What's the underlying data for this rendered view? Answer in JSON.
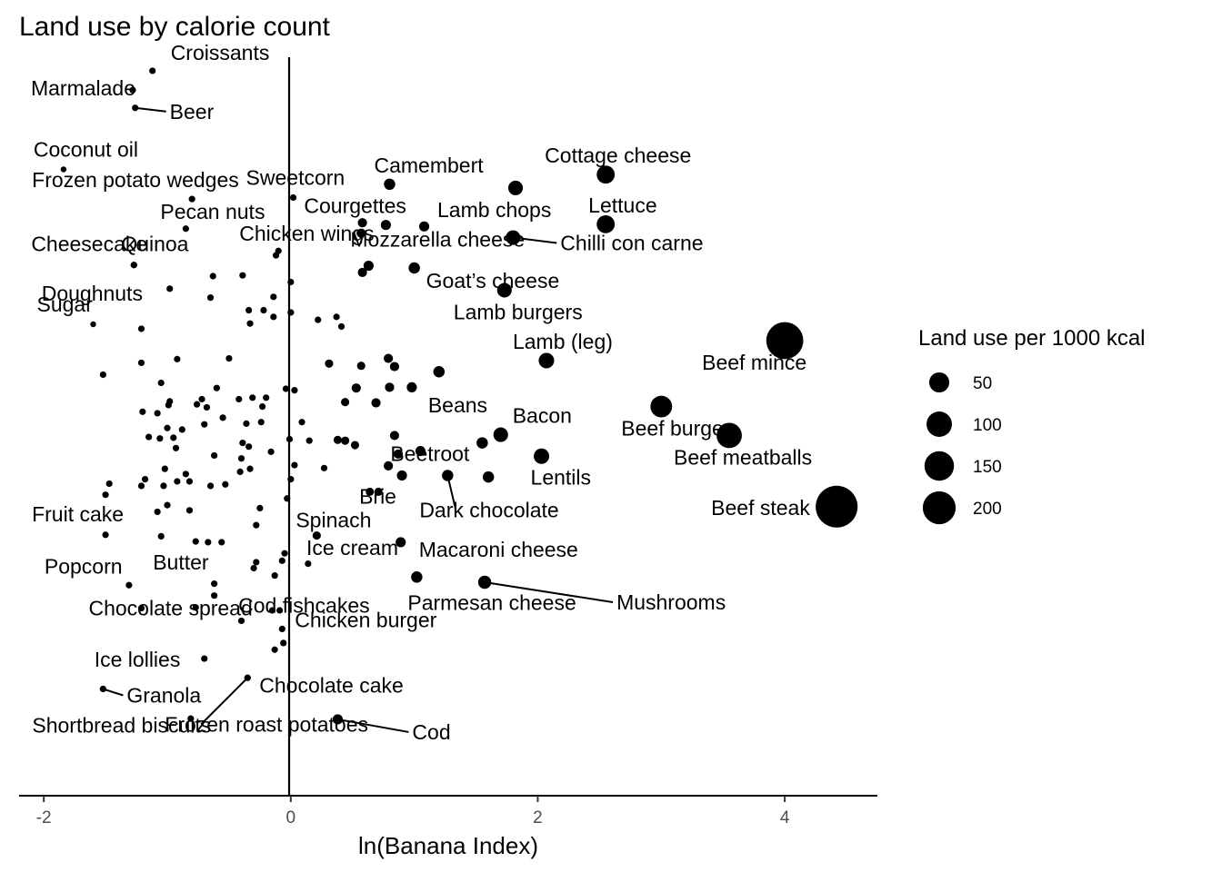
{
  "chart_data": {
    "type": "scatter",
    "title": "Land use by calorie count",
    "xlabel": "ln(Banana Index)",
    "ylabel": "",
    "xlim": [
      -2.2,
      4.75
    ],
    "ylim": [
      0,
      1
    ],
    "x_ticks": [
      -2,
      0,
      2,
      4
    ],
    "x_tick_labels": [
      "-2",
      "0",
      "2",
      "4"
    ],
    "grid": false,
    "legend": {
      "title": "Land use per 1000 kcal",
      "position": "right",
      "entries": [
        {
          "label": "50",
          "value": 50
        },
        {
          "label": "100",
          "value": 100
        },
        {
          "label": "150",
          "value": 150
        },
        {
          "label": "200",
          "value": 200
        }
      ]
    },
    "labeled_points": [
      {
        "name": "Croissants",
        "x": -1.12,
        "y": 0.978,
        "size": 5
      },
      {
        "name": "Marmalade",
        "x": -1.28,
        "y": 0.952,
        "size": 5
      },
      {
        "name": "Beer",
        "x": -1.26,
        "y": 0.928,
        "size": 5
      },
      {
        "name": "Coconut oil",
        "x": -1.84,
        "y": 0.845,
        "size": 4
      },
      {
        "name": "Frozen potato wedges",
        "x": -0.8,
        "y": 0.805,
        "size": 5
      },
      {
        "name": "Sweetcorn",
        "x": 0.02,
        "y": 0.807,
        "size": 5
      },
      {
        "name": "Camembert",
        "x": 0.8,
        "y": 0.825,
        "size": 15
      },
      {
        "name": "Cottage cheese",
        "x": 2.55,
        "y": 0.838,
        "size": 38
      },
      {
        "name": "Lamb chops",
        "x": 1.82,
        "y": 0.82,
        "size": 25
      },
      {
        "name": "Lettuce",
        "x": 2.55,
        "y": 0.771,
        "size": 38
      },
      {
        "name": "Courgettes",
        "x": 0.77,
        "y": 0.77,
        "size": 12
      },
      {
        "name": "Chilli con carne",
        "x": 1.8,
        "y": 0.753,
        "size": 25
      },
      {
        "name": "Pecan nuts",
        "x": -0.85,
        "y": 0.765,
        "size": 5
      },
      {
        "name": "Mozzarella cheese",
        "x": 0.63,
        "y": 0.715,
        "size": 12
      },
      {
        "name": "Cheesecake",
        "x": -1.27,
        "y": 0.716,
        "size": 5
      },
      {
        "name": "Quinoa",
        "x": -1.27,
        "y": 0.716,
        "size": 5
      },
      {
        "name": "Chicken wings",
        "x": -0.1,
        "y": 0.735,
        "size": 5
      },
      {
        "name": "Goat’s cheese",
        "x": 1.0,
        "y": 0.712,
        "size": 15
      },
      {
        "name": "Doughnuts",
        "x": -0.98,
        "y": 0.684,
        "size": 5
      },
      {
        "name": "Lamb burgers",
        "x": 1.73,
        "y": 0.682,
        "size": 25
      },
      {
        "name": "Sugar",
        "x": -1.6,
        "y": 0.636,
        "size": 4
      },
      {
        "name": "Beef mince",
        "x": 4.0,
        "y": 0.614,
        "size": 160
      },
      {
        "name": "Lamb (leg)",
        "x": 2.07,
        "y": 0.587,
        "size": 28
      },
      {
        "name": "Beans",
        "x": 1.2,
        "y": 0.572,
        "size": 15
      },
      {
        "name": "Beef burger",
        "x": 3.0,
        "y": 0.525,
        "size": 55
      },
      {
        "name": "Bacon",
        "x": 1.7,
        "y": 0.487,
        "size": 25
      },
      {
        "name": "Beef meatballs",
        "x": 3.55,
        "y": 0.486,
        "size": 75
      },
      {
        "name": "Beetroot",
        "x": 1.55,
        "y": 0.476,
        "size": 15
      },
      {
        "name": "Lentils",
        "x": 2.03,
        "y": 0.458,
        "size": 28
      },
      {
        "name": "Dark chocolate",
        "x": 1.27,
        "y": 0.432,
        "size": 15
      },
      {
        "name": "Brie",
        "x": 0.9,
        "y": 0.432,
        "size": 12
      },
      {
        "name": "Beef steak",
        "x": 4.42,
        "y": 0.39,
        "size": 205
      },
      {
        "name": "Fruit cake",
        "x": -1.5,
        "y": 0.352,
        "size": 5
      },
      {
        "name": "Spinach",
        "x": 0.21,
        "y": 0.351,
        "size": 8
      },
      {
        "name": "Macaroni cheese",
        "x": 0.89,
        "y": 0.342,
        "size": 12
      },
      {
        "name": "Butter",
        "x": -0.77,
        "y": 0.343,
        "size": 5
      },
      {
        "name": "Ice cream",
        "x": -0.05,
        "y": 0.327,
        "size": 5
      },
      {
        "name": "Popcorn",
        "x": -1.31,
        "y": 0.284,
        "size": 5
      },
      {
        "name": "Parmesan cheese",
        "x": 1.02,
        "y": 0.295,
        "size": 15
      },
      {
        "name": "Mushrooms",
        "x": 1.57,
        "y": 0.288,
        "size": 20
      },
      {
        "name": "Cod fishcakes",
        "x": -0.13,
        "y": 0.297,
        "size": 5
      },
      {
        "name": "Chocolate spread",
        "x": -0.4,
        "y": 0.236,
        "size": 5
      },
      {
        "name": "Chicken burger",
        "x": -0.07,
        "y": 0.225,
        "size": 5
      },
      {
        "name": "Ice lollies",
        "x": -0.7,
        "y": 0.185,
        "size": 5
      },
      {
        "name": "Chocolate cake",
        "x": -0.35,
        "y": 0.159,
        "size": 5
      },
      {
        "name": "Granola",
        "x": -1.52,
        "y": 0.144,
        "size": 5
      },
      {
        "name": "Cod",
        "x": 0.38,
        "y": 0.103,
        "size": 12
      },
      {
        "name": "Shortbread biscuits",
        "x": -1.52,
        "y": 0.144,
        "size": 5
      },
      {
        "name": "Frozen roast potatoes",
        "x": -0.35,
        "y": 0.159,
        "size": 5
      }
    ],
    "unlabeled_points": [
      {
        "x": -0.63,
        "y": 0.701,
        "size": 5
      },
      {
        "x": -0.39,
        "y": 0.702,
        "size": 5
      },
      {
        "x": -0.65,
        "y": 0.672,
        "size": 5
      },
      {
        "x": -0.14,
        "y": 0.673,
        "size": 5
      },
      {
        "x": 0.0,
        "y": 0.693,
        "size": 5
      },
      {
        "x": -0.12,
        "y": 0.729,
        "size": 5
      },
      {
        "x": 0.57,
        "y": 0.759,
        "size": 10
      },
      {
        "x": 0.58,
        "y": 0.773,
        "size": 10
      },
      {
        "x": 1.08,
        "y": 0.768,
        "size": 12
      },
      {
        "x": 0.58,
        "y": 0.706,
        "size": 10
      },
      {
        "x": -1.21,
        "y": 0.63,
        "size": 5
      },
      {
        "x": -0.34,
        "y": 0.655,
        "size": 5
      },
      {
        "x": -0.22,
        "y": 0.655,
        "size": 5
      },
      {
        "x": -0.14,
        "y": 0.646,
        "size": 5
      },
      {
        "x": -0.33,
        "y": 0.637,
        "size": 5
      },
      {
        "x": 0.0,
        "y": 0.652,
        "size": 5
      },
      {
        "x": 0.22,
        "y": 0.642,
        "size": 5
      },
      {
        "x": 0.37,
        "y": 0.646,
        "size": 5
      },
      {
        "x": 0.41,
        "y": 0.633,
        "size": 5
      },
      {
        "x": -0.5,
        "y": 0.59,
        "size": 5
      },
      {
        "x": -1.21,
        "y": 0.584,
        "size": 5
      },
      {
        "x": -0.92,
        "y": 0.589,
        "size": 5
      },
      {
        "x": -1.52,
        "y": 0.568,
        "size": 5
      },
      {
        "x": -1.05,
        "y": 0.557,
        "size": 5
      },
      {
        "x": 0.31,
        "y": 0.583,
        "size": 8
      },
      {
        "x": 0.57,
        "y": 0.58,
        "size": 8
      },
      {
        "x": 0.79,
        "y": 0.59,
        "size": 10
      },
      {
        "x": 0.84,
        "y": 0.579,
        "size": 10
      },
      {
        "x": -0.6,
        "y": 0.55,
        "size": 5
      },
      {
        "x": -0.42,
        "y": 0.535,
        "size": 5
      },
      {
        "x": -0.31,
        "y": 0.537,
        "size": 5
      },
      {
        "x": -0.68,
        "y": 0.524,
        "size": 5
      },
      {
        "x": -0.2,
        "y": 0.537,
        "size": 5
      },
      {
        "x": -0.76,
        "y": 0.528,
        "size": 5
      },
      {
        "x": -0.98,
        "y": 0.532,
        "size": 5
      },
      {
        "x": -0.04,
        "y": 0.549,
        "size": 5
      },
      {
        "x": 0.03,
        "y": 0.547,
        "size": 5
      },
      {
        "x": 0.53,
        "y": 0.55,
        "size": 10
      },
      {
        "x": 0.8,
        "y": 0.551,
        "size": 10
      },
      {
        "x": 0.98,
        "y": 0.551,
        "size": 12
      },
      {
        "x": 0.44,
        "y": 0.531,
        "size": 8
      },
      {
        "x": 0.69,
        "y": 0.53,
        "size": 10
      },
      {
        "x": -0.99,
        "y": 0.527,
        "size": 5
      },
      {
        "x": -1.2,
        "y": 0.518,
        "size": 5
      },
      {
        "x": -1.08,
        "y": 0.516,
        "size": 5
      },
      {
        "x": -0.72,
        "y": 0.535,
        "size": 5
      },
      {
        "x": -0.23,
        "y": 0.525,
        "size": 5
      },
      {
        "x": -0.7,
        "y": 0.501,
        "size": 5
      },
      {
        "x": -0.55,
        "y": 0.51,
        "size": 5
      },
      {
        "x": -0.36,
        "y": 0.502,
        "size": 5
      },
      {
        "x": -0.24,
        "y": 0.504,
        "size": 5
      },
      {
        "x": -1.0,
        "y": 0.496,
        "size": 5
      },
      {
        "x": -0.88,
        "y": 0.494,
        "size": 5
      },
      {
        "x": -1.15,
        "y": 0.484,
        "size": 5
      },
      {
        "x": -0.95,
        "y": 0.483,
        "size": 5
      },
      {
        "x": -0.93,
        "y": 0.469,
        "size": 5
      },
      {
        "x": -1.06,
        "y": 0.482,
        "size": 5
      },
      {
        "x": -0.34,
        "y": 0.471,
        "size": 5
      },
      {
        "x": -0.39,
        "y": 0.476,
        "size": 5
      },
      {
        "x": -0.16,
        "y": 0.464,
        "size": 5
      },
      {
        "x": -0.62,
        "y": 0.459,
        "size": 5
      },
      {
        "x": -0.4,
        "y": 0.455,
        "size": 5
      },
      {
        "x": -0.01,
        "y": 0.481,
        "size": 5
      },
      {
        "x": 0.15,
        "y": 0.479,
        "size": 5
      },
      {
        "x": 0.09,
        "y": 0.504,
        "size": 5
      },
      {
        "x": 0.38,
        "y": 0.48,
        "size": 8
      },
      {
        "x": 0.44,
        "y": 0.479,
        "size": 8
      },
      {
        "x": 0.52,
        "y": 0.473,
        "size": 8
      },
      {
        "x": 0.84,
        "y": 0.486,
        "size": 10
      },
      {
        "x": -1.02,
        "y": 0.441,
        "size": 5
      },
      {
        "x": -0.85,
        "y": 0.434,
        "size": 5
      },
      {
        "x": -0.33,
        "y": 0.441,
        "size": 5
      },
      {
        "x": -0.41,
        "y": 0.437,
        "size": 5
      },
      {
        "x": 0.03,
        "y": 0.446,
        "size": 5
      },
      {
        "x": 0.27,
        "y": 0.442,
        "size": 5
      },
      {
        "x": -1.18,
        "y": 0.427,
        "size": 5
      },
      {
        "x": -1.21,
        "y": 0.418,
        "size": 5
      },
      {
        "x": -0.92,
        "y": 0.424,
        "size": 5
      },
      {
        "x": -1.03,
        "y": 0.418,
        "size": 5
      },
      {
        "x": -1.47,
        "y": 0.421,
        "size": 5
      },
      {
        "x": -1.5,
        "y": 0.406,
        "size": 5
      },
      {
        "x": -0.65,
        "y": 0.418,
        "size": 5
      },
      {
        "x": -0.82,
        "y": 0.424,
        "size": 5
      },
      {
        "x": -0.53,
        "y": 0.42,
        "size": 5
      },
      {
        "x": 0.0,
        "y": 0.427,
        "size": 5
      },
      {
        "x": 0.87,
        "y": 0.461,
        "size": 10
      },
      {
        "x": 0.79,
        "y": 0.445,
        "size": 10
      },
      {
        "x": 1.05,
        "y": 0.465,
        "size": 12
      },
      {
        "x": 1.6,
        "y": 0.43,
        "size": 15
      },
      {
        "x": 0.64,
        "y": 0.41,
        "size": 8
      },
      {
        "x": 0.71,
        "y": 0.41,
        "size": 8
      },
      {
        "x": -0.03,
        "y": 0.401,
        "size": 5
      },
      {
        "x": -1.0,
        "y": 0.392,
        "size": 5
      },
      {
        "x": -1.08,
        "y": 0.383,
        "size": 5
      },
      {
        "x": -0.82,
        "y": 0.385,
        "size": 5
      },
      {
        "x": -0.25,
        "y": 0.388,
        "size": 5
      },
      {
        "x": -0.28,
        "y": 0.365,
        "size": 5
      },
      {
        "x": -1.05,
        "y": 0.35,
        "size": 5
      },
      {
        "x": -0.67,
        "y": 0.342,
        "size": 5
      },
      {
        "x": -0.56,
        "y": 0.342,
        "size": 5
      },
      {
        "x": -0.28,
        "y": 0.315,
        "size": 5
      },
      {
        "x": -0.07,
        "y": 0.317,
        "size": 5
      },
      {
        "x": -0.3,
        "y": 0.307,
        "size": 5
      },
      {
        "x": 0.14,
        "y": 0.313,
        "size": 5
      },
      {
        "x": -0.62,
        "y": 0.286,
        "size": 5
      },
      {
        "x": -0.62,
        "y": 0.27,
        "size": 5
      },
      {
        "x": -1.21,
        "y": 0.253,
        "size": 5
      },
      {
        "x": -0.77,
        "y": 0.254,
        "size": 5
      },
      {
        "x": -0.15,
        "y": 0.25,
        "size": 5
      },
      {
        "x": -0.09,
        "y": 0.25,
        "size": 5
      },
      {
        "x": -0.13,
        "y": 0.197,
        "size": 5
      },
      {
        "x": -0.06,
        "y": 0.206,
        "size": 5
      },
      {
        "x": -0.81,
        "y": 0.104,
        "size": 5
      }
    ]
  }
}
